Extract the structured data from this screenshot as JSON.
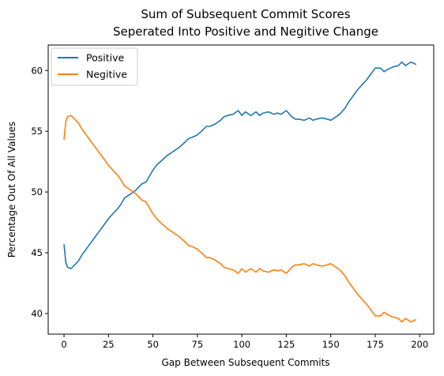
{
  "chart_data": {
    "type": "line",
    "title": "Sum of Subsequent Commit Scores",
    "subtitle": "Seperated Into Positive and Negitive Change",
    "xlabel": "Gap Between Subsequent Commits",
    "ylabel": "Percentage Out Of All Values",
    "xlim": [
      -8.9,
      207.9
    ],
    "ylim": [
      38.3,
      62.1
    ],
    "xticks": [
      0,
      25,
      50,
      75,
      100,
      125,
      150,
      175,
      200
    ],
    "yticks": [
      40,
      45,
      50,
      55,
      60
    ],
    "grid": false,
    "legend_position": "upper-left",
    "series": [
      {
        "name": "Positive",
        "color": "#1f77b4",
        "x": [
          0,
          1,
          2,
          4,
          6,
          8,
          10,
          12,
          14,
          16,
          18,
          20,
          22,
          25,
          28,
          30,
          32,
          34,
          36,
          38,
          40,
          42,
          44,
          46,
          48,
          50,
          52,
          55,
          58,
          60,
          62,
          65,
          68,
          70,
          72,
          75,
          78,
          80,
          82,
          85,
          88,
          90,
          92,
          95,
          98,
          100,
          102,
          105,
          108,
          110,
          112,
          115,
          118,
          120,
          122,
          125,
          128,
          130,
          132,
          135,
          138,
          140,
          142,
          145,
          148,
          150,
          152,
          155,
          158,
          160,
          162,
          165,
          168,
          170,
          172,
          175,
          178,
          180,
          182,
          185,
          188,
          190,
          192,
          195,
          198
        ],
        "values": [
          45.7,
          44.2,
          43.8,
          43.7,
          44.0,
          44.3,
          44.8,
          45.2,
          45.6,
          46.0,
          46.4,
          46.8,
          47.2,
          47.8,
          48.3,
          48.6,
          49.0,
          49.5,
          49.7,
          49.9,
          50.1,
          50.4,
          50.7,
          50.8,
          51.3,
          51.8,
          52.2,
          52.6,
          53.0,
          53.2,
          53.4,
          53.7,
          54.1,
          54.4,
          54.5,
          54.7,
          55.1,
          55.4,
          55.4,
          55.6,
          55.9,
          56.2,
          56.3,
          56.4,
          56.7,
          56.3,
          56.6,
          56.3,
          56.6,
          56.3,
          56.5,
          56.6,
          56.4,
          56.5,
          56.4,
          56.7,
          56.2,
          56.0,
          56.0,
          55.9,
          56.1,
          55.9,
          56.0,
          56.1,
          56.0,
          55.9,
          56.1,
          56.4,
          56.9,
          57.4,
          57.8,
          58.4,
          58.9,
          59.2,
          59.6,
          60.2,
          60.2,
          59.9,
          60.1,
          60.3,
          60.4,
          60.7,
          60.4,
          60.7,
          60.5
        ]
      },
      {
        "name": "Negitive",
        "color": "#ff7f0e",
        "x": [
          0,
          1,
          2,
          4,
          6,
          8,
          10,
          12,
          14,
          16,
          18,
          20,
          22,
          25,
          28,
          30,
          32,
          34,
          36,
          38,
          40,
          42,
          44,
          46,
          48,
          50,
          52,
          55,
          58,
          60,
          62,
          65,
          68,
          70,
          72,
          75,
          78,
          80,
          82,
          85,
          88,
          90,
          92,
          95,
          98,
          100,
          102,
          105,
          108,
          110,
          112,
          115,
          118,
          120,
          122,
          125,
          128,
          130,
          132,
          135,
          138,
          140,
          142,
          145,
          148,
          150,
          152,
          155,
          158,
          160,
          162,
          165,
          168,
          170,
          172,
          175,
          178,
          180,
          182,
          185,
          188,
          190,
          192,
          195,
          198
        ],
        "values": [
          54.3,
          55.8,
          56.2,
          56.3,
          56.0,
          55.7,
          55.2,
          54.8,
          54.4,
          54.0,
          53.6,
          53.2,
          52.8,
          52.2,
          51.7,
          51.4,
          51.0,
          50.5,
          50.3,
          50.1,
          49.9,
          49.6,
          49.3,
          49.2,
          48.7,
          48.2,
          47.8,
          47.4,
          47.0,
          46.8,
          46.6,
          46.3,
          45.9,
          45.6,
          45.5,
          45.3,
          44.9,
          44.6,
          44.6,
          44.4,
          44.1,
          43.8,
          43.7,
          43.6,
          43.3,
          43.7,
          43.4,
          43.7,
          43.4,
          43.7,
          43.5,
          43.4,
          43.6,
          43.5,
          43.6,
          43.3,
          43.8,
          44.0,
          44.0,
          44.1,
          43.9,
          44.1,
          44.0,
          43.9,
          44.0,
          44.1,
          43.9,
          43.6,
          43.1,
          42.6,
          42.2,
          41.6,
          41.1,
          40.8,
          40.4,
          39.8,
          39.8,
          40.1,
          39.9,
          39.7,
          39.6,
          39.3,
          39.6,
          39.3,
          39.5
        ]
      }
    ]
  }
}
